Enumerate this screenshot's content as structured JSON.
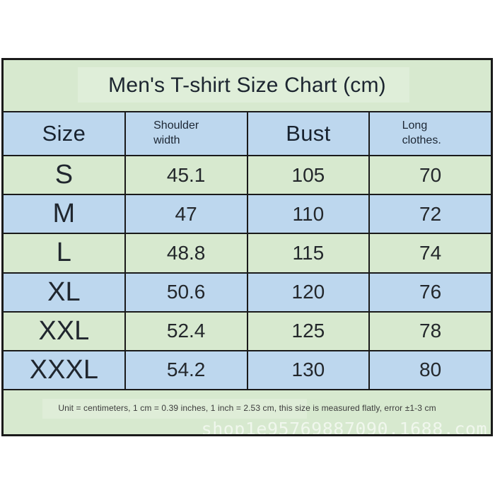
{
  "title": "Men's T-shirt Size Chart (cm)",
  "colors": {
    "row_green": "#d7e9cf",
    "row_blue": "#bdd7ee",
    "border": "#1a1a1a",
    "watermark_text": "#ffffff"
  },
  "table": {
    "columns": {
      "size": "Size",
      "shoulder": "Shoulder width",
      "bust": "Bust",
      "long": "Long clothes."
    },
    "rows": [
      {
        "size": "S",
        "shoulder": "45.1",
        "bust": "105",
        "long": "70"
      },
      {
        "size": "M",
        "shoulder": "47",
        "bust": "110",
        "long": "72"
      },
      {
        "size": "L",
        "shoulder": "48.8",
        "bust": "115",
        "long": "74"
      },
      {
        "size": "XL",
        "shoulder": "50.6",
        "bust": "120",
        "long": "76"
      },
      {
        "size": "XXL",
        "shoulder": "52.4",
        "bust": "125",
        "long": "78"
      },
      {
        "size": "XXXL",
        "shoulder": "54.2",
        "bust": "130",
        "long": "80"
      }
    ],
    "footnote": "Unit = centimeters, 1 cm = 0.39 inches, 1 inch = 2.53 cm, this size is measured flatly, error ±1-3 cm"
  },
  "watermark": "shop1e95769887090.1688.com",
  "chart_data": {
    "type": "table",
    "title": "Men's T-shirt Size Chart (cm)",
    "columns": [
      "Size",
      "Shoulder width",
      "Bust",
      "Long clothes."
    ],
    "rows": [
      [
        "S",
        45.1,
        105,
        70
      ],
      [
        "M",
        47,
        110,
        72
      ],
      [
        "L",
        48.8,
        115,
        74
      ],
      [
        "XL",
        50.6,
        120,
        76
      ],
      [
        "XXL",
        52.4,
        125,
        78
      ],
      [
        "XXXL",
        54.2,
        130,
        80
      ]
    ],
    "unit": "cm",
    "footnote": "Unit = centimeters, 1 cm = 0.39 inches, 1 inch = 2.53 cm, this size is measured flatly, error ±1-3 cm"
  }
}
